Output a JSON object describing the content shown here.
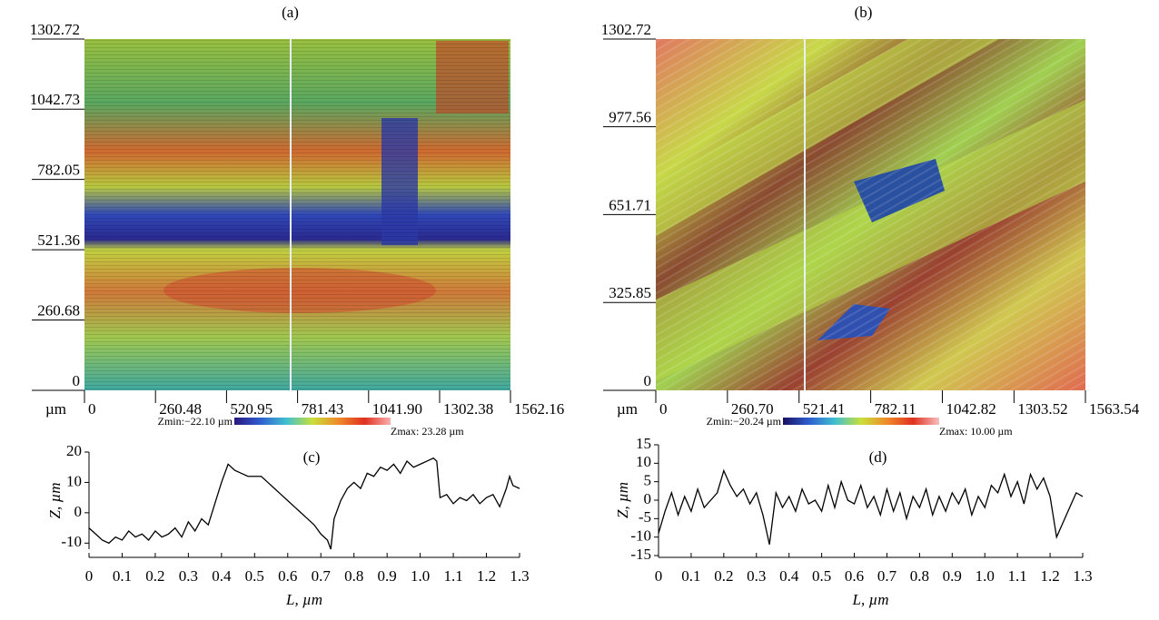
{
  "chart_data": [
    {
      "type": "surface",
      "title": "(a)",
      "x_label": "µm",
      "xlim": [
        0,
        1562.16
      ],
      "xticks": [
        0,
        260.48,
        520.95,
        781.43,
        {
          "value": 1041.9,
          "label": "1041.90"
        },
        1302.38,
        1562.16
      ],
      "ylim": [
        0,
        1302.72
      ],
      "yticks": [
        0,
        260.68,
        521.36,
        782.05,
        1042.73,
        1302.72
      ],
      "zmin_label": "Zmin:−22.10 µm",
      "zmax_label": "Zmax: 23.28 µm",
      "colormap": [
        "#2a1780",
        "#2f5fd0",
        "#40c0d0",
        "#c8e03a",
        "#f08a2a",
        "#e03020",
        "#f8b0b0"
      ]
    },
    {
      "type": "surface",
      "title": "(b)",
      "x_label": "µm",
      "xlim": [
        0,
        1563.54
      ],
      "xticks": [
        0,
        {
          "value": 260.7,
          "label": "260.70"
        },
        521.41,
        782.11,
        1042.82,
        1303.52,
        1563.54
      ],
      "ylim": [
        0,
        1302.72
      ],
      "yticks": [
        0,
        325.85,
        651.71,
        977.56,
        1302.72
      ],
      "zmin_label": "Zmin:−20.24 µm",
      "zmax_label": "Zmax: 10.00 µm",
      "colormap": [
        "#1a1060",
        "#2f5fd0",
        "#40c0d0",
        "#c8e03a",
        "#f08a2a",
        "#e03020",
        "#f8c0c0"
      ]
    },
    {
      "type": "line",
      "title": "(c)",
      "x_label": "L, µm",
      "y_label": "Z, µm",
      "color": "#000000",
      "xlim": [
        0,
        1.3
      ],
      "xticks": [
        0,
        0.1,
        0.2,
        0.3,
        0.4,
        0.5,
        0.6,
        0.7,
        0.8,
        0.9,
        {
          "value": 1,
          "label": "1.0"
        },
        1.1,
        1.2,
        1.3
      ],
      "ylim": [
        -12,
        20
      ],
      "yticks": [
        -10,
        0,
        10,
        20
      ],
      "x": [
        0,
        0.02,
        0.04,
        0.06,
        0.08,
        0.1,
        0.12,
        0.14,
        0.16,
        0.18,
        0.2,
        0.22,
        0.24,
        0.26,
        0.28,
        0.3,
        0.32,
        0.34,
        0.36,
        0.38,
        0.4,
        0.42,
        0.44,
        0.46,
        0.48,
        0.5,
        0.52,
        0.54,
        0.56,
        0.58,
        0.6,
        0.62,
        0.64,
        0.66,
        0.68,
        0.7,
        0.72,
        0.73,
        0.74,
        0.76,
        0.78,
        0.8,
        0.82,
        0.84,
        0.86,
        0.88,
        0.9,
        0.92,
        0.94,
        0.96,
        0.98,
        1.0,
        1.02,
        1.04,
        1.05,
        1.06,
        1.08,
        1.1,
        1.12,
        1.14,
        1.16,
        1.18,
        1.2,
        1.22,
        1.24,
        1.26,
        1.27,
        1.28,
        1.3
      ],
      "values": [
        -5,
        -7,
        -9,
        -10,
        -8,
        -9,
        -6,
        -8,
        -7,
        -9,
        -6,
        -8,
        -7,
        -5,
        -8,
        -3,
        -6,
        -2,
        -4,
        3,
        10,
        16,
        14,
        13,
        12,
        12,
        12,
        10,
        8,
        6,
        4,
        2,
        0,
        -2,
        -4,
        -7,
        -9,
        -12,
        -2,
        4,
        8,
        10,
        8,
        13,
        12,
        15,
        14,
        16,
        13,
        17,
        15,
        16,
        17,
        18,
        17,
        5,
        6,
        3,
        5,
        4,
        6,
        3,
        5,
        6,
        2,
        8,
        12,
        9,
        8
      ]
    },
    {
      "type": "line",
      "title": "(d)",
      "x_label": "L, µm",
      "y_label": "Z, µm",
      "color": "#000000",
      "xlim": [
        0,
        1.3
      ],
      "xticks": [
        0,
        0.1,
        0.2,
        0.3,
        0.4,
        0.5,
        0.6,
        0.7,
        0.8,
        0.9,
        {
          "value": 1,
          "label": "1.0"
        },
        1.1,
        1.2,
        1.3
      ],
      "ylim": [
        -15,
        15
      ],
      "yticks": [
        -15,
        -10,
        -5,
        0,
        5,
        10,
        15
      ],
      "x": [
        0,
        0.02,
        0.04,
        0.06,
        0.08,
        0.1,
        0.12,
        0.14,
        0.16,
        0.18,
        0.2,
        0.22,
        0.24,
        0.26,
        0.28,
        0.3,
        0.32,
        0.34,
        0.36,
        0.38,
        0.4,
        0.42,
        0.44,
        0.46,
        0.48,
        0.5,
        0.52,
        0.54,
        0.56,
        0.58,
        0.6,
        0.62,
        0.64,
        0.66,
        0.68,
        0.7,
        0.72,
        0.74,
        0.76,
        0.78,
        0.8,
        0.82,
        0.84,
        0.86,
        0.88,
        0.9,
        0.92,
        0.94,
        0.96,
        0.98,
        1.0,
        1.02,
        1.04,
        1.06,
        1.08,
        1.1,
        1.12,
        1.14,
        1.16,
        1.18,
        1.2,
        1.22,
        1.24,
        1.26,
        1.28,
        1.3
      ],
      "values": [
        -9,
        -3,
        2,
        -4,
        1,
        -3,
        3,
        -2,
        0,
        2,
        8,
        4,
        1,
        3,
        -1,
        2,
        -4,
        -12,
        2,
        -2,
        1,
        -3,
        3,
        -1,
        0,
        -3,
        4,
        -2,
        5,
        0,
        -1,
        4,
        -2,
        1,
        -4,
        3,
        -3,
        2,
        -5,
        1,
        -2,
        3,
        -4,
        1,
        -3,
        2,
        -1,
        3,
        -4,
        1,
        -2,
        4,
        2,
        7,
        1,
        5,
        -1,
        7,
        3,
        6,
        1,
        -10,
        -6,
        -2,
        2,
        1
      ]
    }
  ]
}
